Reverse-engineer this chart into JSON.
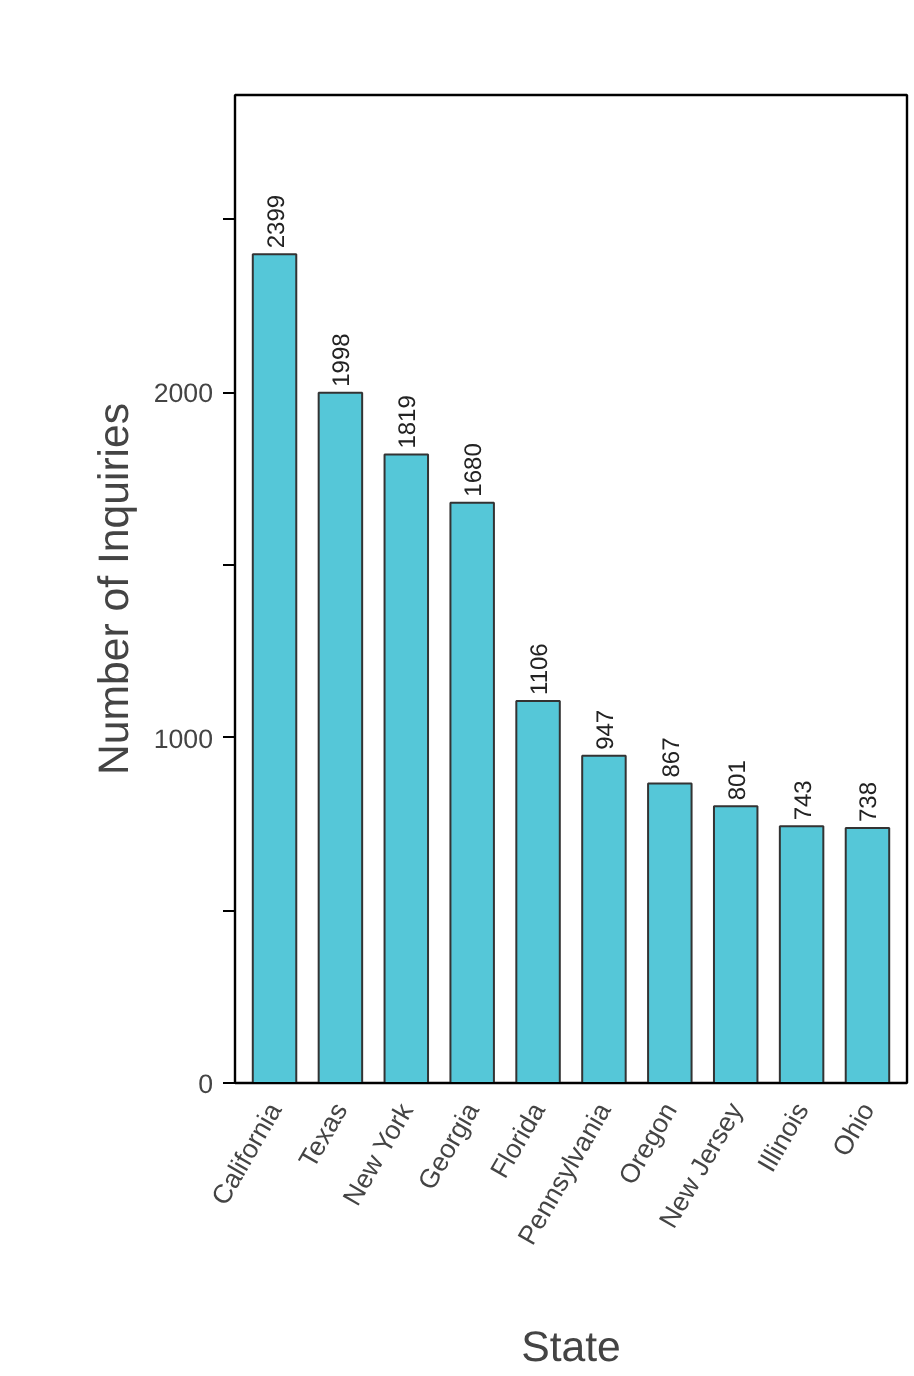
{
  "chart_data": {
    "type": "bar",
    "xlabel": "State",
    "ylabel": "Number of Inquiries",
    "categories": [
      "California",
      "Texas",
      "New York",
      "Georgia",
      "Florida",
      "Pennsylvania",
      "Oregon",
      "New Jersey",
      "Illinois",
      "Ohio"
    ],
    "values": [
      2399,
      1998,
      1819,
      1680,
      1106,
      947,
      867,
      801,
      743,
      738
    ],
    "color": "#55c7d8",
    "data_labels": true,
    "ylim": [
      0,
      2860
    ],
    "yticks": [
      0,
      {
        "value": 500,
        "label": null
      },
      1000,
      {
        "value": 1500,
        "label": null
      },
      2000,
      {
        "value": 2500,
        "label": null
      }
    ]
  }
}
